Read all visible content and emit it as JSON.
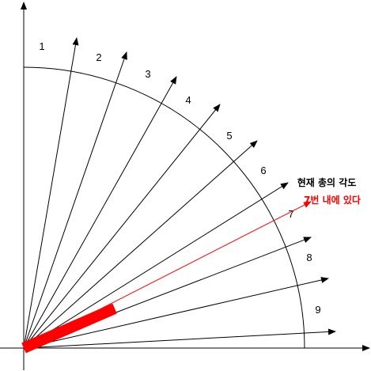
{
  "arrows": {
    "labels": [
      "1",
      "2",
      "3",
      "4",
      "5",
      "6",
      "7",
      "8",
      "9"
    ]
  },
  "annotation": {
    "line1": "현재 총의 각도",
    "line2": "7번 내에 있다"
  },
  "colors": {
    "line": "#000000",
    "highlight": "#ff0000"
  }
}
